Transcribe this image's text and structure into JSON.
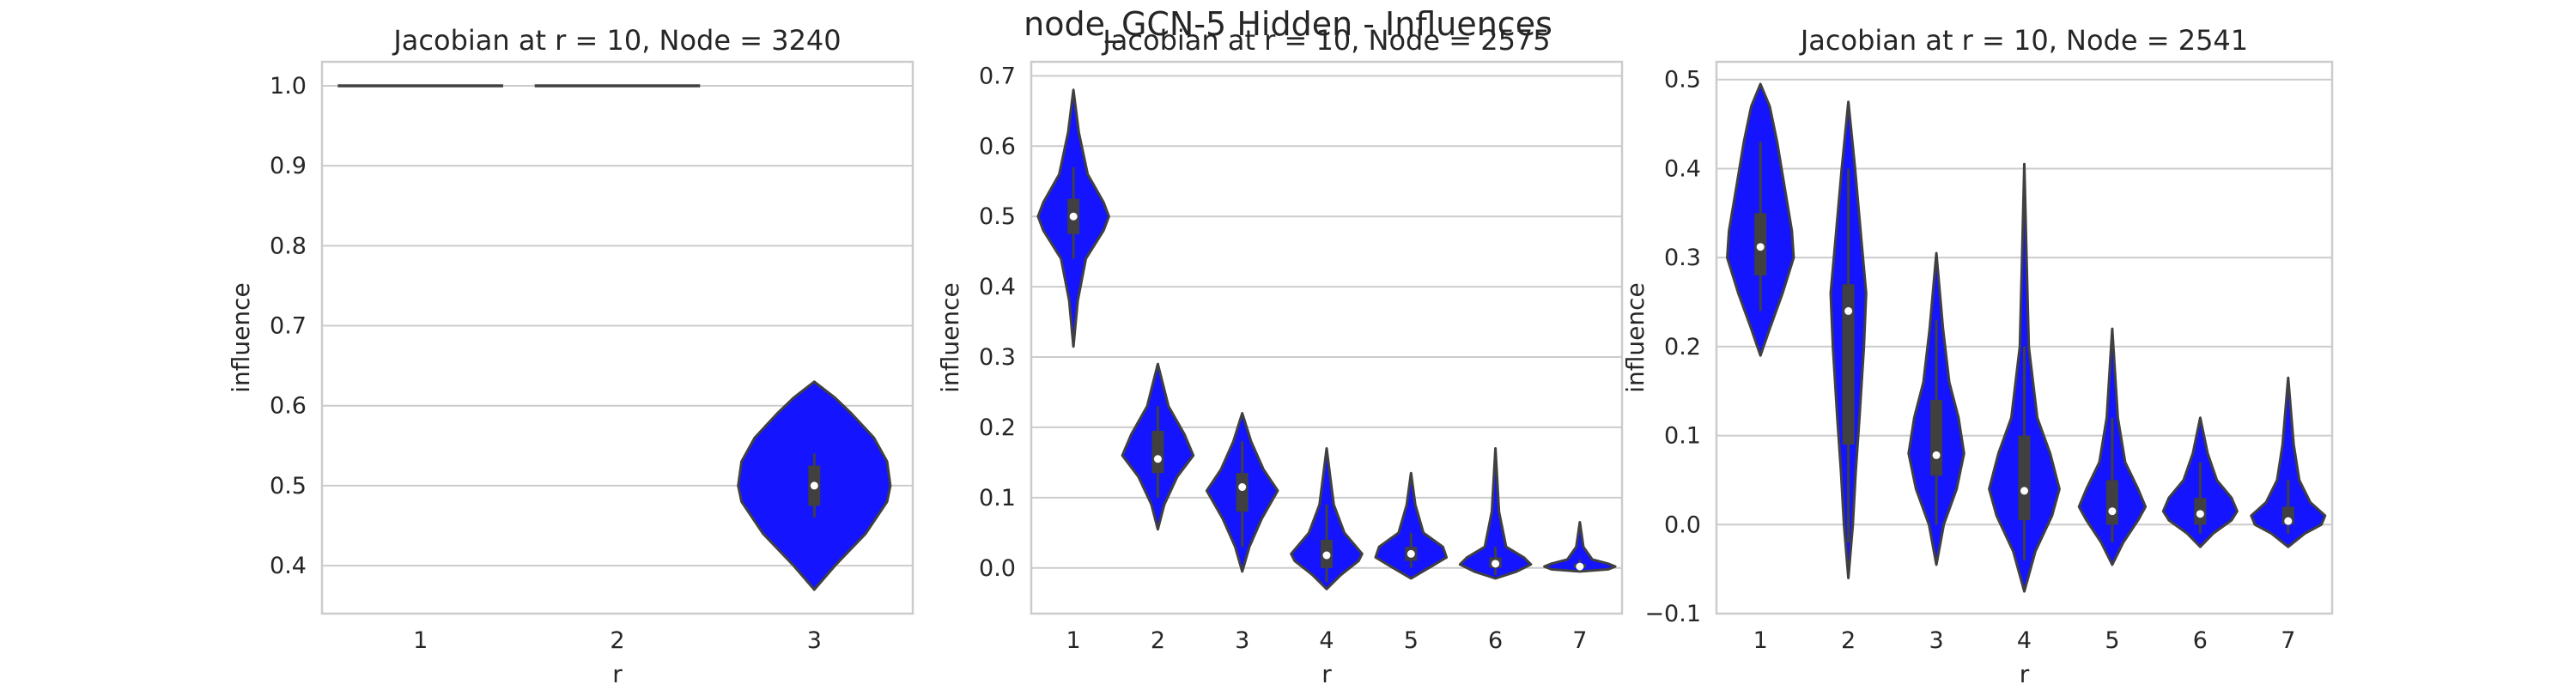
{
  "figure": {
    "title": "node_GCN-5 Hidden - Influences",
    "violin_color": "#1414ff",
    "edge_color": "#404040",
    "grid_color": "#cccccc"
  },
  "chart_data": [
    {
      "type": "violin",
      "title": "Jacobian at r = 10, Node = 3240",
      "xlabel": "r",
      "ylabel": "influence",
      "categories": [
        "1",
        "2",
        "3"
      ],
      "ylim": [
        0.34,
        1.03
      ],
      "yticks": [
        0.4,
        0.5,
        0.6,
        0.7,
        0.8,
        0.9,
        1.0
      ],
      "ytick_labels": [
        "0.4",
        "0.5",
        "0.6",
        "0.7",
        "0.8",
        "0.9",
        "1.0"
      ],
      "grid": "y",
      "violins": [
        {
          "r": "1",
          "constant": true,
          "value": 1.0,
          "median": 1.0
        },
        {
          "r": "2",
          "constant": true,
          "value": 1.0,
          "median": 1.0
        },
        {
          "r": "3",
          "min": 0.37,
          "max": 0.63,
          "q1": 0.475,
          "median": 0.5,
          "q3": 0.525,
          "whisker_low": 0.46,
          "whisker_high": 0.54,
          "profile": [
            [
              0.37,
              0.0
            ],
            [
              0.4,
              0.25
            ],
            [
              0.44,
              0.62
            ],
            [
              0.48,
              0.88
            ],
            [
              0.5,
              0.92
            ],
            [
              0.53,
              0.88
            ],
            [
              0.56,
              0.72
            ],
            [
              0.59,
              0.45
            ],
            [
              0.61,
              0.25
            ],
            [
              0.63,
              0.0
            ]
          ]
        }
      ]
    },
    {
      "type": "violin",
      "title": "Jacobian at r = 10, Node = 2575",
      "xlabel": "r",
      "ylabel": "influence",
      "categories": [
        "1",
        "2",
        "3",
        "4",
        "5",
        "6",
        "7"
      ],
      "ylim": [
        -0.065,
        0.72
      ],
      "yticks": [
        0.0,
        0.1,
        0.2,
        0.3,
        0.4,
        0.5,
        0.6,
        0.7
      ],
      "ytick_labels": [
        "0.0",
        "0.1",
        "0.2",
        "0.3",
        "0.4",
        "0.5",
        "0.6",
        "0.7"
      ],
      "grid": "y",
      "violins": [
        {
          "r": "1",
          "min": 0.315,
          "max": 0.68,
          "q1": 0.475,
          "median": 0.5,
          "q3": 0.525,
          "whisker_low": 0.44,
          "whisker_high": 0.57,
          "profile": [
            [
              0.315,
              0.0
            ],
            [
              0.38,
              0.12
            ],
            [
              0.44,
              0.35
            ],
            [
              0.48,
              0.85
            ],
            [
              0.5,
              1.0
            ],
            [
              0.52,
              0.85
            ],
            [
              0.56,
              0.4
            ],
            [
              0.62,
              0.15
            ],
            [
              0.68,
              0.0
            ]
          ]
        },
        {
          "r": "2",
          "min": 0.055,
          "max": 0.29,
          "q1": 0.135,
          "median": 0.155,
          "q3": 0.195,
          "whisker_low": 0.1,
          "whisker_high": 0.23,
          "profile": [
            [
              0.055,
              0.0
            ],
            [
              0.09,
              0.18
            ],
            [
              0.13,
              0.55
            ],
            [
              0.16,
              1.0
            ],
            [
              0.19,
              0.75
            ],
            [
              0.23,
              0.3
            ],
            [
              0.26,
              0.15
            ],
            [
              0.29,
              0.0
            ]
          ]
        },
        {
          "r": "3",
          "min": -0.005,
          "max": 0.22,
          "q1": 0.08,
          "median": 0.115,
          "q3": 0.135,
          "whisker_low": 0.03,
          "whisker_high": 0.18,
          "profile": [
            [
              -0.005,
              0.0
            ],
            [
              0.03,
              0.2
            ],
            [
              0.07,
              0.55
            ],
            [
              0.11,
              1.0
            ],
            [
              0.14,
              0.6
            ],
            [
              0.18,
              0.25
            ],
            [
              0.22,
              0.0
            ]
          ]
        },
        {
          "r": "4",
          "min": -0.03,
          "max": 0.17,
          "q1": 0.0,
          "median": 0.018,
          "q3": 0.04,
          "whisker_low": -0.02,
          "whisker_high": 0.09,
          "profile": [
            [
              -0.03,
              0.0
            ],
            [
              -0.01,
              0.4
            ],
            [
              0.01,
              0.9
            ],
            [
              0.02,
              1.0
            ],
            [
              0.05,
              0.5
            ],
            [
              0.09,
              0.2
            ],
            [
              0.13,
              0.1
            ],
            [
              0.17,
              0.0
            ]
          ]
        },
        {
          "r": "5",
          "min": -0.015,
          "max": 0.135,
          "q1": 0.01,
          "median": 0.02,
          "q3": 0.03,
          "whisker_low": 0.0,
          "whisker_high": 0.05,
          "profile": [
            [
              -0.015,
              0.0
            ],
            [
              0.0,
              0.5
            ],
            [
              0.015,
              1.0
            ],
            [
              0.03,
              0.9
            ],
            [
              0.05,
              0.35
            ],
            [
              0.09,
              0.12
            ],
            [
              0.135,
              0.0
            ]
          ]
        },
        {
          "r": "6",
          "min": -0.015,
          "max": 0.17,
          "q1": 0.0,
          "median": 0.006,
          "q3": 0.015,
          "whisker_low": -0.01,
          "whisker_high": 0.03,
          "profile": [
            [
              -0.015,
              0.0
            ],
            [
              -0.005,
              0.6
            ],
            [
              0.005,
              1.0
            ],
            [
              0.015,
              0.8
            ],
            [
              0.03,
              0.3
            ],
            [
              0.08,
              0.1
            ],
            [
              0.17,
              0.0
            ]
          ]
        },
        {
          "r": "7",
          "min": -0.005,
          "max": 0.065,
          "q1": 0.0,
          "median": 0.002,
          "q3": 0.006,
          "whisker_low": -0.002,
          "whisker_high": 0.012,
          "profile": [
            [
              -0.005,
              0.0
            ],
            [
              -0.002,
              0.8
            ],
            [
              0.002,
              1.0
            ],
            [
              0.006,
              0.8
            ],
            [
              0.012,
              0.35
            ],
            [
              0.03,
              0.1
            ],
            [
              0.065,
              0.0
            ]
          ]
        }
      ]
    },
    {
      "type": "violin",
      "title": "Jacobian at r = 10, Node = 2541",
      "xlabel": "r",
      "ylabel": "influence",
      "categories": [
        "1",
        "2",
        "3",
        "4",
        "5",
        "6",
        "7"
      ],
      "ylim": [
        -0.1,
        0.52
      ],
      "yticks": [
        -0.1,
        0.0,
        0.1,
        0.2,
        0.3,
        0.4,
        0.5
      ],
      "ytick_labels": [
        "−0.1",
        "0.0",
        "0.1",
        "0.2",
        "0.3",
        "0.4",
        "0.5"
      ],
      "grid": "y",
      "violins": [
        {
          "r": "1",
          "min": 0.19,
          "max": 0.495,
          "q1": 0.28,
          "median": 0.312,
          "q3": 0.35,
          "whisker_low": 0.24,
          "whisker_high": 0.43,
          "profile": [
            [
              0.19,
              0.0
            ],
            [
              0.22,
              0.25
            ],
            [
              0.26,
              0.6
            ],
            [
              0.3,
              0.9
            ],
            [
              0.33,
              0.85
            ],
            [
              0.38,
              0.65
            ],
            [
              0.43,
              0.45
            ],
            [
              0.47,
              0.25
            ],
            [
              0.495,
              0.0
            ]
          ]
        },
        {
          "r": "2",
          "min": -0.06,
          "max": 0.475,
          "q1": 0.09,
          "median": 0.24,
          "q3": 0.27,
          "whisker_low": -0.02,
          "whisker_high": 0.4,
          "profile": [
            [
              -0.06,
              0.0
            ],
            [
              0.0,
              0.12
            ],
            [
              0.06,
              0.2
            ],
            [
              0.12,
              0.3
            ],
            [
              0.2,
              0.42
            ],
            [
              0.26,
              0.48
            ],
            [
              0.32,
              0.35
            ],
            [
              0.4,
              0.18
            ],
            [
              0.475,
              0.0
            ]
          ]
        },
        {
          "r": "3",
          "min": -0.045,
          "max": 0.305,
          "q1": 0.055,
          "median": 0.078,
          "q3": 0.14,
          "whisker_low": 0.0,
          "whisker_high": 0.23,
          "profile": [
            [
              -0.045,
              0.0
            ],
            [
              0.0,
              0.2
            ],
            [
              0.04,
              0.55
            ],
            [
              0.08,
              0.75
            ],
            [
              0.12,
              0.6
            ],
            [
              0.16,
              0.35
            ],
            [
              0.22,
              0.18
            ],
            [
              0.305,
              0.0
            ]
          ]
        },
        {
          "r": "4",
          "min": -0.075,
          "max": 0.405,
          "q1": 0.005,
          "median": 0.038,
          "q3": 0.1,
          "whisker_low": -0.04,
          "whisker_high": 0.2,
          "profile": [
            [
              -0.075,
              0.0
            ],
            [
              -0.03,
              0.3
            ],
            [
              0.01,
              0.75
            ],
            [
              0.04,
              0.95
            ],
            [
              0.08,
              0.7
            ],
            [
              0.12,
              0.35
            ],
            [
              0.2,
              0.12
            ],
            [
              0.3,
              0.06
            ],
            [
              0.405,
              0.0
            ]
          ]
        },
        {
          "r": "5",
          "min": -0.045,
          "max": 0.22,
          "q1": 0.0,
          "median": 0.015,
          "q3": 0.05,
          "whisker_low": -0.02,
          "whisker_high": 0.12,
          "profile": [
            [
              -0.045,
              0.0
            ],
            [
              -0.02,
              0.3
            ],
            [
              0.005,
              0.7
            ],
            [
              0.02,
              0.9
            ],
            [
              0.04,
              0.7
            ],
            [
              0.07,
              0.35
            ],
            [
              0.12,
              0.15
            ],
            [
              0.22,
              0.0
            ]
          ]
        },
        {
          "r": "6",
          "min": -0.025,
          "max": 0.12,
          "q1": 0.0,
          "median": 0.012,
          "q3": 0.03,
          "whisker_low": -0.01,
          "whisker_high": 0.07,
          "profile": [
            [
              -0.025,
              0.0
            ],
            [
              -0.01,
              0.35
            ],
            [
              0.005,
              0.85
            ],
            [
              0.015,
              1.0
            ],
            [
              0.03,
              0.85
            ],
            [
              0.05,
              0.45
            ],
            [
              0.08,
              0.2
            ],
            [
              0.12,
              0.0
            ]
          ]
        },
        {
          "r": "7",
          "min": -0.025,
          "max": 0.165,
          "q1": 0.0,
          "median": 0.004,
          "q3": 0.02,
          "whisker_low": -0.01,
          "whisker_high": 0.05,
          "profile": [
            [
              -0.025,
              0.0
            ],
            [
              -0.01,
              0.45
            ],
            [
              0.0,
              0.9
            ],
            [
              0.01,
              1.0
            ],
            [
              0.025,
              0.6
            ],
            [
              0.05,
              0.3
            ],
            [
              0.09,
              0.15
            ],
            [
              0.165,
              0.0
            ]
          ]
        }
      ]
    }
  ]
}
